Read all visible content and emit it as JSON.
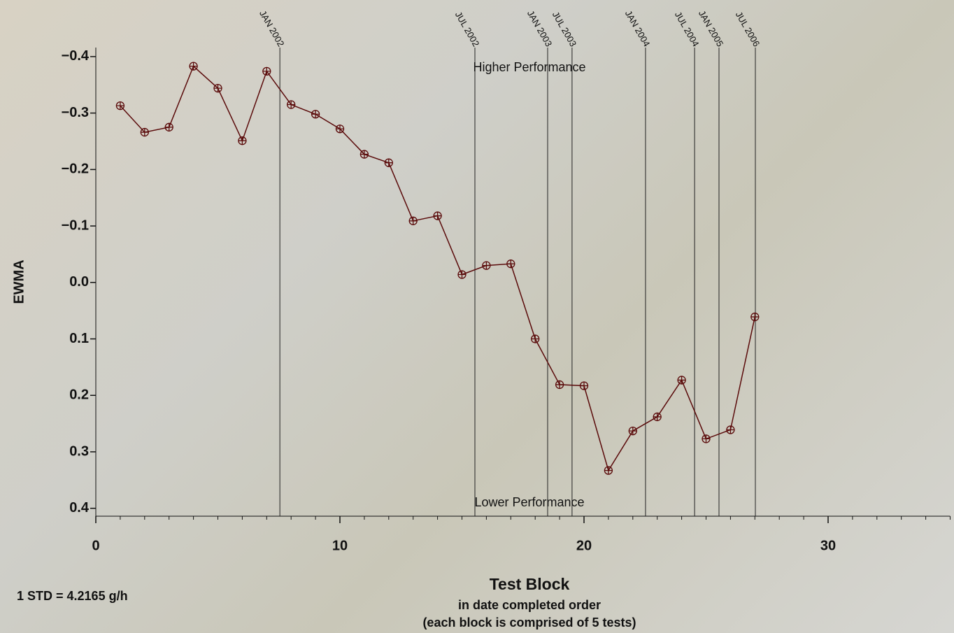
{
  "chart_data": {
    "type": "line",
    "ylabel": "EWMA",
    "xlabel": "Test Block",
    "xlabel_notes": [
      "in date completed order",
      "(each block is comprised of 5 tests)"
    ],
    "note": "1 STD  =  4.2165 g/h",
    "annotations": [
      "Higher Performance",
      "Lower Performance"
    ],
    "x": [
      1,
      2,
      3,
      4,
      5,
      6,
      7,
      8,
      9,
      10,
      11,
      12,
      13,
      14,
      15,
      16,
      17,
      18,
      19,
      20,
      21,
      22,
      23,
      24,
      25,
      26,
      27
    ],
    "series": [
      {
        "color": "#5a0a0a",
        "values": [
          -0.313,
          -0.266,
          -0.275,
          -0.383,
          -0.344,
          -0.251,
          -0.374,
          -0.315,
          -0.298,
          -0.272,
          -0.227,
          -0.212,
          -0.109,
          -0.118,
          -0.014,
          -0.03,
          -0.033,
          0.1,
          0.181,
          0.183,
          0.333,
          0.263,
          0.238,
          0.173,
          0.277,
          0.261,
          0.061
        ]
      }
    ],
    "events": [
      {
        "label": "JAN 2002",
        "x": 7.54
      },
      {
        "label": "JUL 2002",
        "x": 15.53
      },
      {
        "label": "JAN 2003",
        "x": 18.51
      },
      {
        "label": "JUL 2003",
        "x": 19.51
      },
      {
        "label": "JAN 2004",
        "x": 22.52
      },
      {
        "label": "JUL 2004",
        "x": 24.53
      },
      {
        "label": "JAN 2005",
        "x": 25.53
      },
      {
        "label": "JUL 2006",
        "x": 27.02
      }
    ],
    "xlim": [
      0,
      35
    ],
    "xticks": [
      0,
      10,
      20,
      30
    ],
    "xminor_step": 1,
    "ylim": [
      -0.416,
      0.414
    ],
    "y_reversed": true,
    "yticks": [
      {
        "value": -0.4,
        "label": "−0.4"
      },
      {
        "value": -0.3,
        "label": "−0.3"
      },
      {
        "value": -0.2,
        "label": "−0.2"
      },
      {
        "value": -0.1,
        "label": "−0.1"
      },
      {
        "value": 0,
        "label": "0.0"
      },
      0.1,
      0.2,
      0.3,
      0.4
    ]
  }
}
